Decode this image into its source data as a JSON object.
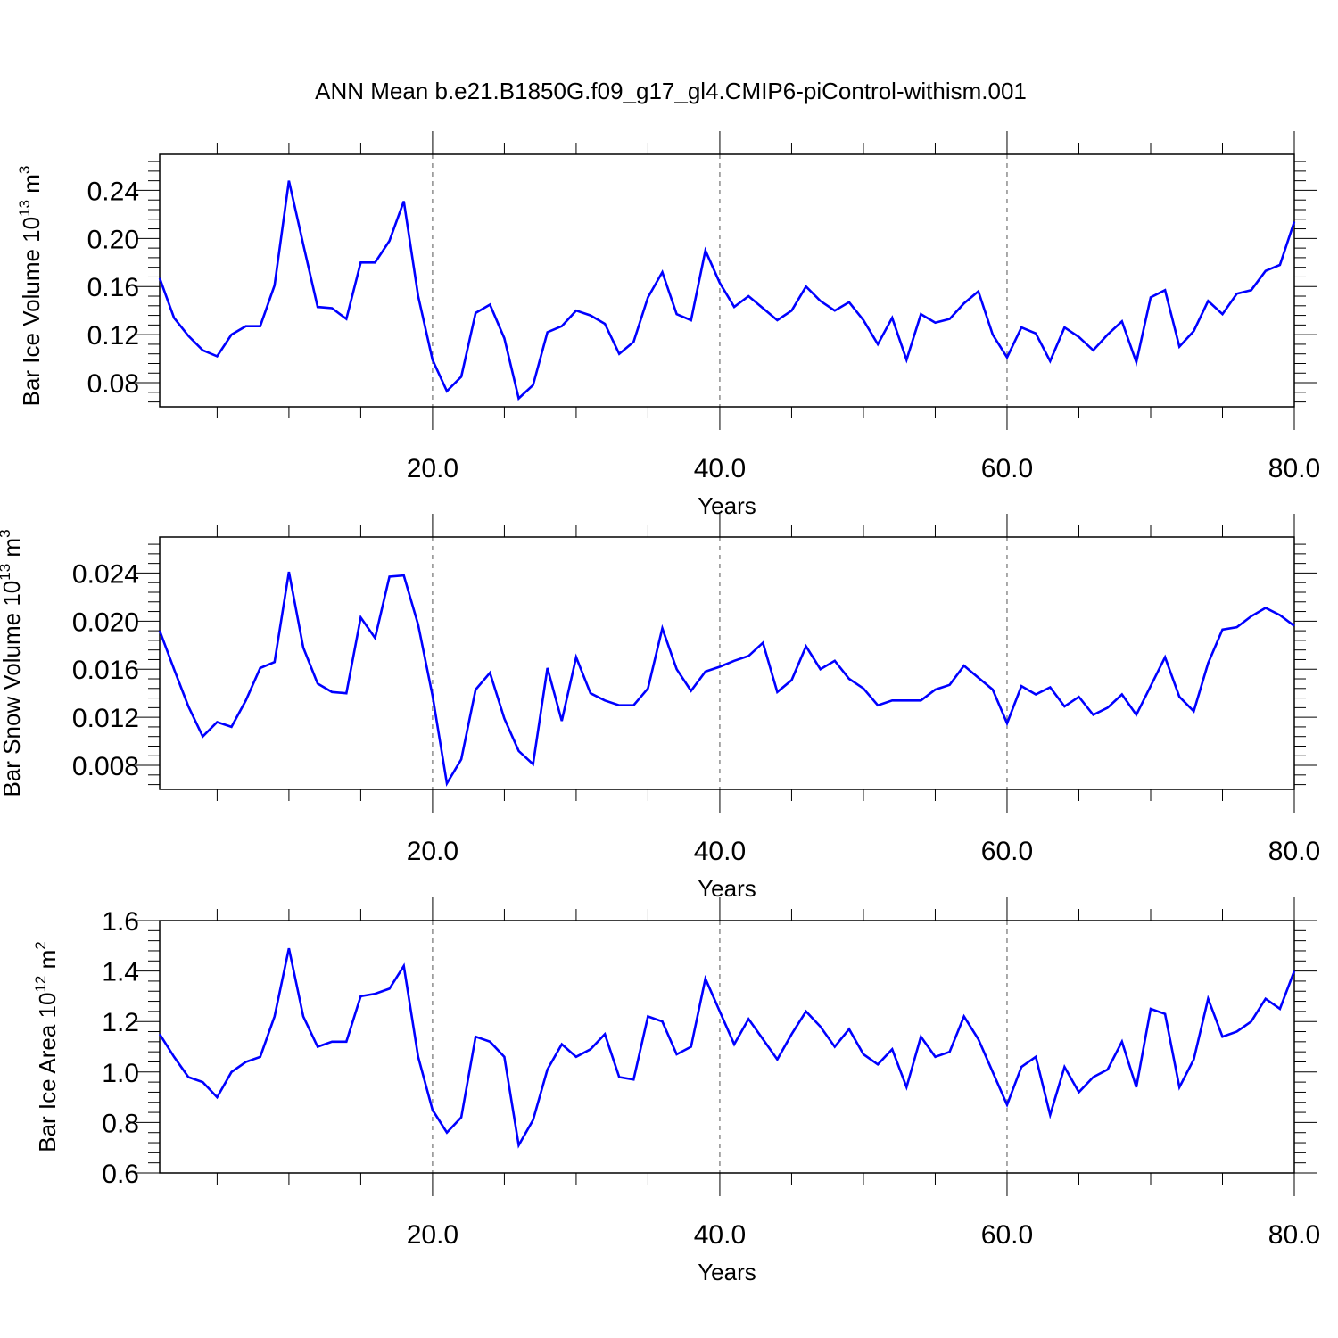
{
  "title": "ANN Mean b.e21.B1850G.f09_g17_gl4.CMIP6-piControl-withism.001",
  "colors": {
    "line": "#0000ff",
    "axis": "#000000",
    "grid": "#555555"
  },
  "chart_data": [
    {
      "type": "line",
      "ylabel": "Bar Ice Volume 10",
      "ylabel_exp": "13",
      "ylabel_unit": " m",
      "ylabel_unit_exp": "3",
      "xlabel": "Years",
      "xlim": [
        1,
        80
      ],
      "ylim": [
        0.06,
        0.27
      ],
      "x_ticks": [
        20,
        40,
        60,
        80
      ],
      "x_tick_labels": [
        "20.0",
        "40.0",
        "60.0",
        "80.0"
      ],
      "y_ticks": [
        0.08,
        0.12,
        0.16,
        0.2,
        0.24
      ],
      "y_tick_labels": [
        "0.08",
        "0.12",
        "0.16",
        "0.20",
        "0.24"
      ],
      "grid": "dashed vertical at 20, 40, 60",
      "x": [
        1,
        2,
        3,
        4,
        5,
        6,
        7,
        8,
        9,
        10,
        11,
        12,
        13,
        14,
        15,
        16,
        17,
        18,
        19,
        20,
        21,
        22,
        23,
        24,
        25,
        26,
        27,
        28,
        29,
        30,
        31,
        32,
        33,
        34,
        35,
        36,
        37,
        38,
        39,
        40,
        41,
        42,
        43,
        44,
        45,
        46,
        47,
        48,
        49,
        50,
        51,
        52,
        53,
        54,
        55,
        56,
        57,
        58,
        59,
        60,
        61,
        62,
        63,
        64,
        65,
        66,
        67,
        68,
        69,
        70,
        71,
        72,
        73,
        74,
        75,
        76,
        77,
        78,
        79,
        80
      ],
      "values": [
        0.167,
        0.134,
        0.119,
        0.107,
        0.102,
        0.12,
        0.127,
        0.127,
        0.161,
        0.248,
        0.195,
        0.143,
        0.142,
        0.133,
        0.18,
        0.18,
        0.198,
        0.231,
        0.152,
        0.099,
        0.073,
        0.085,
        0.138,
        0.145,
        0.117,
        0.067,
        0.078,
        0.122,
        0.127,
        0.14,
        0.136,
        0.129,
        0.104,
        0.114,
        0.151,
        0.172,
        0.137,
        0.132,
        0.19,
        0.163,
        0.143,
        0.152,
        0.142,
        0.132,
        0.14,
        0.16,
        0.148,
        0.14,
        0.147,
        0.132,
        0.112,
        0.134,
        0.099,
        0.137,
        0.13,
        0.133,
        0.146,
        0.156,
        0.12,
        0.101,
        0.126,
        0.121,
        0.098,
        0.126,
        0.118,
        0.107,
        0.12,
        0.131,
        0.097,
        0.151,
        0.157,
        0.11,
        0.123,
        0.148,
        0.137,
        0.154,
        0.157,
        0.173,
        0.178,
        0.214
      ]
    },
    {
      "type": "line",
      "ylabel": "Bar Snow Volume 10",
      "ylabel_exp": "13",
      "ylabel_unit": " m",
      "ylabel_unit_exp": "3",
      "xlabel": "Years",
      "xlim": [
        1,
        80
      ],
      "ylim": [
        0.006,
        0.027
      ],
      "x_ticks": [
        20,
        40,
        60,
        80
      ],
      "x_tick_labels": [
        "20.0",
        "40.0",
        "60.0",
        "80.0"
      ],
      "y_ticks": [
        0.008,
        0.012,
        0.016,
        0.02,
        0.024
      ],
      "y_tick_labels": [
        "0.008",
        "0.012",
        "0.016",
        "0.020",
        "0.024"
      ],
      "grid": "dashed vertical at 20, 40, 60",
      "x": [
        1,
        2,
        3,
        4,
        5,
        6,
        7,
        8,
        9,
        10,
        11,
        12,
        13,
        14,
        15,
        16,
        17,
        18,
        19,
        20,
        21,
        22,
        23,
        24,
        25,
        26,
        27,
        28,
        29,
        30,
        31,
        32,
        33,
        34,
        35,
        36,
        37,
        38,
        39,
        40,
        41,
        42,
        43,
        44,
        45,
        46,
        47,
        48,
        49,
        50,
        51,
        52,
        53,
        54,
        55,
        56,
        57,
        58,
        59,
        60,
        61,
        62,
        63,
        64,
        65,
        66,
        67,
        68,
        69,
        70,
        71,
        72,
        73,
        74,
        75,
        76,
        77,
        78,
        79,
        80
      ],
      "values": [
        0.0192,
        0.016,
        0.0129,
        0.0104,
        0.0116,
        0.0112,
        0.0134,
        0.0161,
        0.0166,
        0.0241,
        0.0178,
        0.0148,
        0.0141,
        0.014,
        0.0203,
        0.0186,
        0.0237,
        0.0238,
        0.0197,
        0.0138,
        0.0065,
        0.0085,
        0.0143,
        0.0157,
        0.0119,
        0.0092,
        0.0081,
        0.0161,
        0.0117,
        0.017,
        0.014,
        0.0134,
        0.013,
        0.013,
        0.0144,
        0.0194,
        0.016,
        0.0142,
        0.0158,
        0.0162,
        0.0167,
        0.0171,
        0.0182,
        0.0141,
        0.0151,
        0.0179,
        0.016,
        0.0167,
        0.0152,
        0.0144,
        0.013,
        0.0134,
        0.0134,
        0.0134,
        0.0143,
        0.0147,
        0.0163,
        0.0153,
        0.0143,
        0.0115,
        0.0146,
        0.0139,
        0.0145,
        0.0129,
        0.0137,
        0.0122,
        0.0128,
        0.0139,
        0.0122,
        0.0146,
        0.017,
        0.0137,
        0.0125,
        0.0165,
        0.0193,
        0.0195,
        0.0204,
        0.0211,
        0.0205,
        0.0196
      ]
    },
    {
      "type": "line",
      "ylabel": "Bar Ice Area 10",
      "ylabel_exp": "12",
      "ylabel_unit": " m",
      "ylabel_unit_exp": "2",
      "xlabel": "Years",
      "xlim": [
        1,
        80
      ],
      "ylim": [
        0.6,
        1.6
      ],
      "x_ticks": [
        20,
        40,
        60,
        80
      ],
      "x_tick_labels": [
        "20.0",
        "40.0",
        "60.0",
        "80.0"
      ],
      "y_ticks": [
        0.6,
        0.8,
        1.0,
        1.2,
        1.4,
        1.6
      ],
      "y_tick_labels": [
        "0.6",
        "0.8",
        "1.0",
        "1.2",
        "1.4",
        "1.6"
      ],
      "grid": "dashed vertical at 20, 40, 60",
      "x": [
        1,
        2,
        3,
        4,
        5,
        6,
        7,
        8,
        9,
        10,
        11,
        12,
        13,
        14,
        15,
        16,
        17,
        18,
        19,
        20,
        21,
        22,
        23,
        24,
        25,
        26,
        27,
        28,
        29,
        30,
        31,
        32,
        33,
        34,
        35,
        36,
        37,
        38,
        39,
        40,
        41,
        42,
        43,
        44,
        45,
        46,
        47,
        48,
        49,
        50,
        51,
        52,
        53,
        54,
        55,
        56,
        57,
        58,
        59,
        60,
        61,
        62,
        63,
        64,
        65,
        66,
        67,
        68,
        69,
        70,
        71,
        72,
        73,
        74,
        75,
        76,
        77,
        78,
        79,
        80
      ],
      "values": [
        1.15,
        1.06,
        0.98,
        0.96,
        0.9,
        1.0,
        1.04,
        1.06,
        1.22,
        1.49,
        1.22,
        1.1,
        1.12,
        1.12,
        1.3,
        1.31,
        1.33,
        1.42,
        1.06,
        0.85,
        0.76,
        0.82,
        1.14,
        1.12,
        1.06,
        0.71,
        0.81,
        1.01,
        1.11,
        1.06,
        1.09,
        1.15,
        0.98,
        0.97,
        1.22,
        1.2,
        1.07,
        1.1,
        1.37,
        1.24,
        1.11,
        1.21,
        1.13,
        1.05,
        1.15,
        1.24,
        1.18,
        1.1,
        1.17,
        1.07,
        1.03,
        1.09,
        0.94,
        1.14,
        1.06,
        1.08,
        1.22,
        1.13,
        1.0,
        0.87,
        1.02,
        1.06,
        0.83,
        1.02,
        0.92,
        0.98,
        1.01,
        1.12,
        0.94,
        1.25,
        1.23,
        0.94,
        1.05,
        1.29,
        1.14,
        1.16,
        1.2,
        1.29,
        1.25,
        1.4
      ]
    }
  ]
}
